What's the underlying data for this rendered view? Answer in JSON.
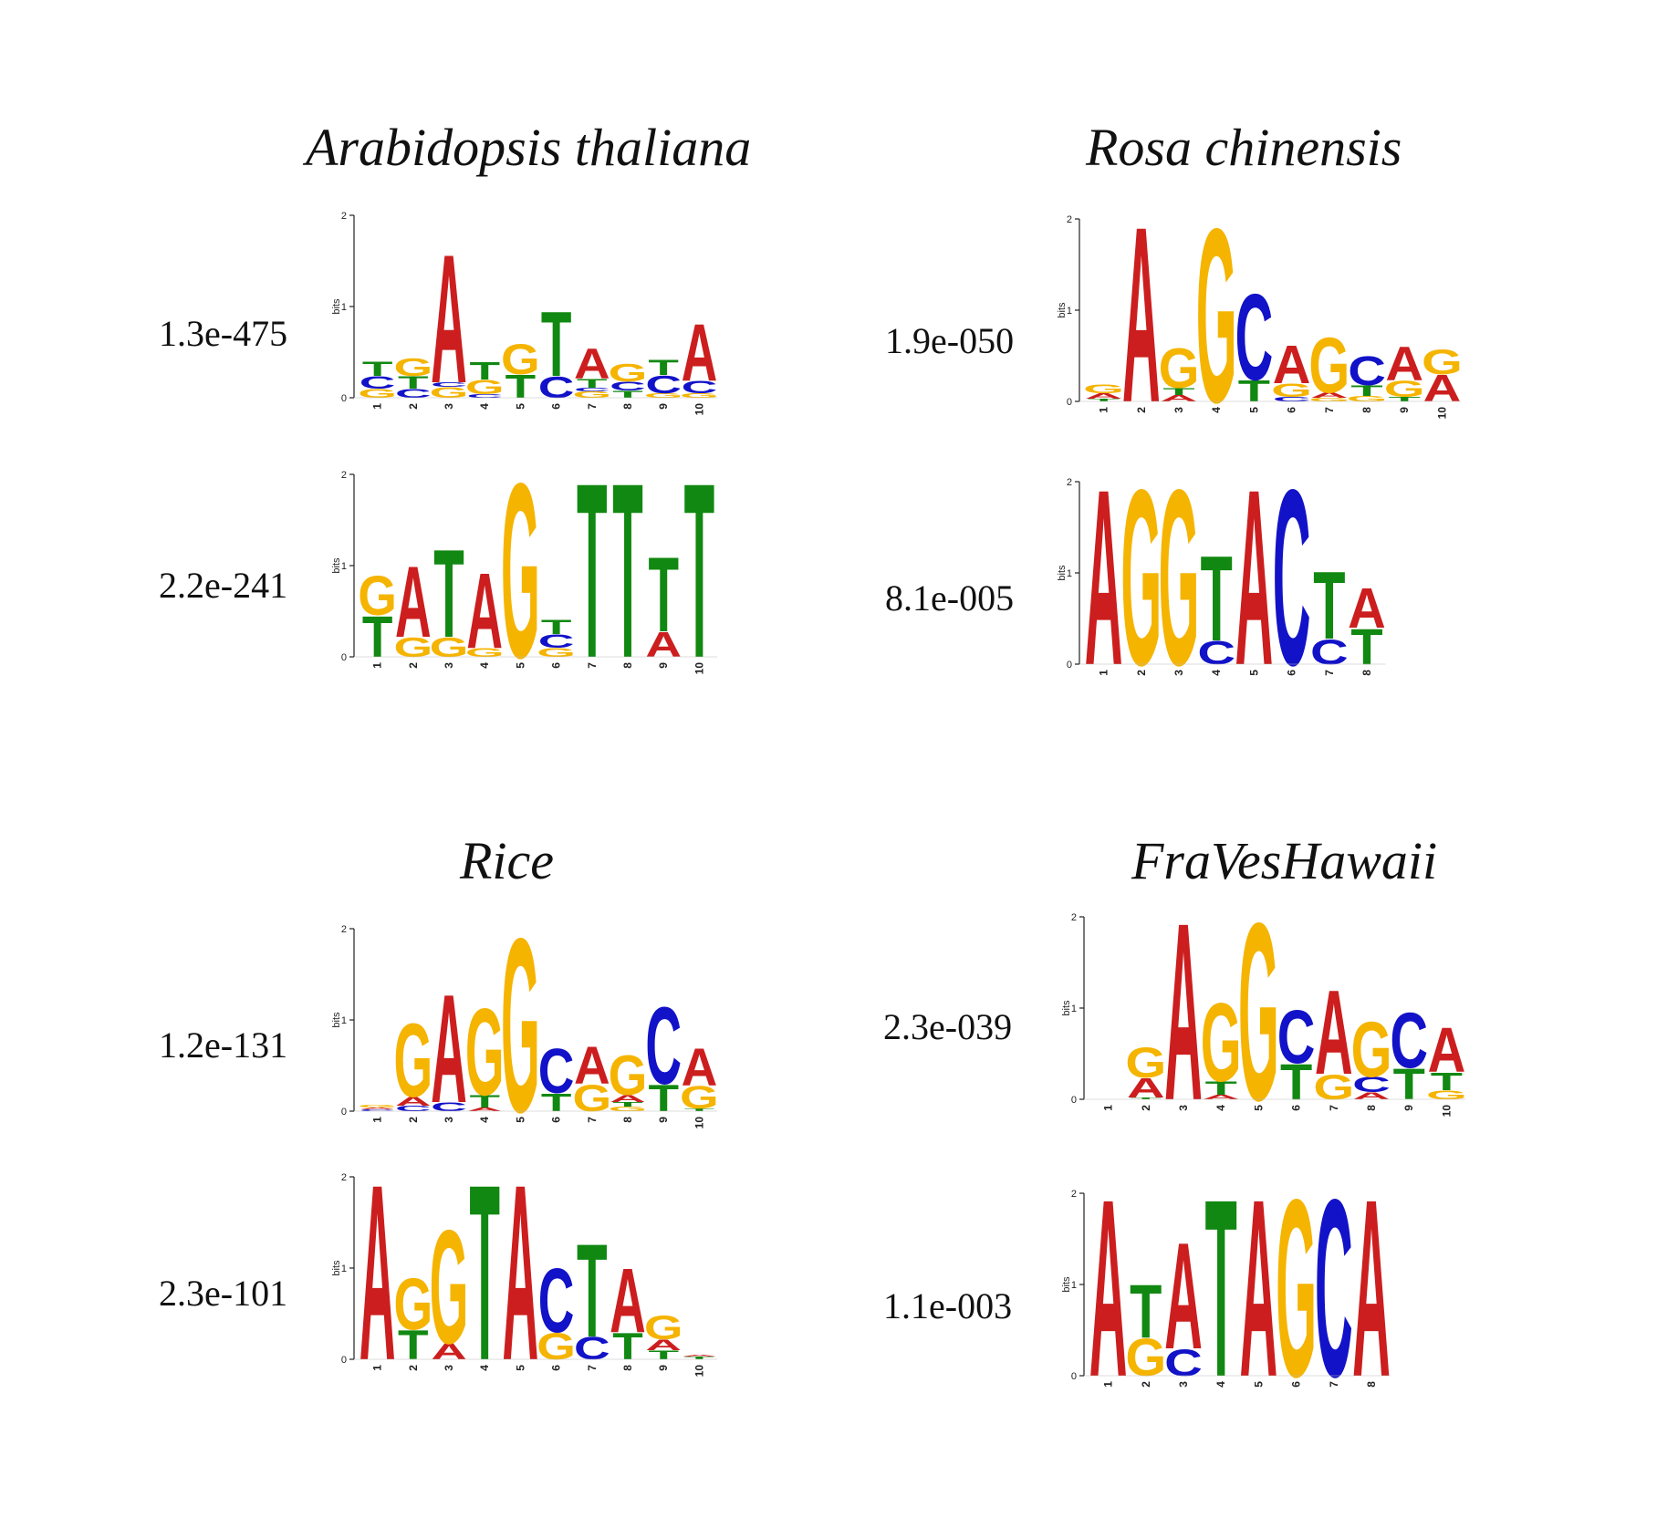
{
  "colors": {
    "A": "#cc1e1e",
    "C": "#1212c8",
    "G": "#f5b400",
    "T": "#118811"
  },
  "axis": {
    "ylabel": "bits",
    "ticks": [
      "0",
      "1",
      "2"
    ]
  },
  "panels": [
    {
      "title": "Arabidopsis thaliana",
      "motifs": [
        {
          "evalue": "1.3e-475",
          "columns": [
            {
              "G": 0.1,
              "C": 0.14,
              "T": 0.16
            },
            {
              "C": 0.1,
              "T": 0.14,
              "G": 0.2
            },
            {
              "G": 0.12,
              "C": 0.05,
              "A": 1.45
            },
            {
              "C": 0.04,
              "G": 0.16,
              "T": 0.2
            },
            {
              "T": 0.26,
              "G": 0.34
            },
            {
              "C": 0.24,
              "T": 0.73
            },
            {
              "G": 0.07,
              "C": 0.04,
              "T": 0.1,
              "A": 0.34
            },
            {
              "T": 0.08,
              "C": 0.1,
              "G": 0.2
            },
            {
              "G": 0.05,
              "C": 0.2,
              "T": 0.17
            },
            {
              "G": 0.05,
              "C": 0.14,
              "A": 0.64
            }
          ]
        },
        {
          "evalue": "2.2e-241",
          "columns": [
            {
              "T": 0.46,
              "G": 0.44
            },
            {
              "G": 0.22,
              "A": 0.8
            },
            {
              "G": 0.22,
              "T": 0.99
            },
            {
              "G": 0.1,
              "A": 0.85
            },
            {
              "G": 1.97
            },
            {
              "G": 0.1,
              "C": 0.15,
              "T": 0.16
            },
            {
              "T": 1.97
            },
            {
              "T": 1.97
            },
            {
              "A": 0.28,
              "T": 0.84
            },
            {
              "T": 1.97
            }
          ]
        }
      ]
    },
    {
      "title": "Rosa chinensis",
      "motifs": [
        {
          "evalue": "1.9e-050",
          "columns": [
            {
              "T": 0.03,
              "A": 0.06,
              "G": 0.1
            },
            {
              "A": 1.98
            },
            {
              "A": 0.07,
              "T": 0.08,
              "G": 0.45
            },
            {
              "G": 1.96
            },
            {
              "T": 0.24,
              "C": 0.97
            },
            {
              "C": 0.05,
              "G": 0.15,
              "A": 0.43
            },
            {
              "G": 0.04,
              "A": 0.06,
              "G2": 0.0,
              "G3": 0.0,
              "G4": 0.0,
              "G5": 0.0,
              "G6": 0.0,
              "Gx": 0.0,
              "GG": 0.0,
              "GGG": 0.0,
              "Gz": 0.0,
              "Gy": 0.0,
              "Gw": 0.0,
              "Gv": 0.0,
              "Gu": 0.0,
              "Gt": 0.0,
              "Gs": 0.0,
              "Gr": 0.0,
              "Gq": 0.0,
              "Gp": 0.0,
              "Go": 0.0,
              "Gn": 0.0,
              "Gm": 0.0,
              "Gl": 0.0,
              "Gk": 0.0,
              "Gj": 0.0,
              "Gi": 0.0,
              "Gh": 0.0,
              "Gg": 0.0,
              "Gf": 0.0,
              "Ge": 0.0,
              "Gd": 0.0,
              "Gc": 0.0,
              "Gb": 0.0,
              "Ga": 0.0,
              "GA": 0.62
            },
            {
              "G": 0.06,
              "T": 0.12,
              "C": 0.33
            },
            {
              "T": 0.05,
              "G": 0.18,
              "A": 0.38
            },
            {
              "A": 0.3,
              "G": 0.28
            }
          ]
        },
        {
          "evalue": "8.1e-005",
          "columns": [
            {
              "A": 1.98
            },
            {
              "G": 1.98
            },
            {
              "G": 1.98
            },
            {
              "C": 0.26,
              "T": 0.96
            },
            {
              "A": 1.98
            },
            {
              "C": 1.98
            },
            {
              "C": 0.28,
              "T": 0.76
            },
            {
              "T": 0.4,
              "A": 0.45
            }
          ]
        }
      ]
    },
    {
      "title": "Rice",
      "motifs": [
        {
          "evalue": "1.2e-131",
          "columns": [
            {
              "C": 0.02,
              "A": 0.02,
              "G": 0.03
            },
            {
              "C": 0.06,
              "A": 0.1,
              "G": 0.83
            },
            {
              "C": 0.1,
              "A": 1.22
            },
            {
              "A": 0.04,
              "T": 0.14,
              "G": 0.98
            },
            {
              "G": 1.96
            },
            {
              "T": 0.2,
              "C": 0.5
            },
            {
              "G": 0.3,
              "A": 0.42
            },
            {
              "G": 0.05,
              "T": 0.05,
              "A": 0.08,
              "G2": 0.0,
              "GA": 0.45
            },
            {
              "T": 0.3,
              "C": 0.87
            },
            {
              "T": 0.03,
              "G": 0.25,
              "A": 0.42
            }
          ]
        },
        {
          "evalue": "2.3e-101",
          "columns": [
            {
              "A": 1.98
            },
            {
              "T": 0.33,
              "G": 0.58
            },
            {
              "A": 0.18,
              "G": 1.28
            },
            {
              "T": 1.98
            },
            {
              "A": 1.98
            },
            {
              "G": 0.3,
              "C": 0.72
            },
            {
              "C": 0.25,
              "T": 1.05
            },
            {
              "T": 0.3,
              "A": 0.72
            },
            {
              "T": 0.1,
              "A": 0.12,
              "G": 0.27
            },
            {
              "T": 0.03,
              "A": 0.02
            }
          ]
        }
      ]
    },
    {
      "title": "FraVesHawaii",
      "motifs": [
        {
          "evalue": "2.3e-039",
          "columns": [
            {},
            {
              "T": 0.02,
              "A": 0.22,
              "G": 0.34
            },
            {
              "A": 2.0
            },
            {
              "A": 0.05,
              "T": 0.15,
              "G": 0.88
            },
            {
              "G": 2.0
            },
            {
              "T": 0.4,
              "C": 0.6
            },
            {
              "G": 0.28,
              "A": 0.95
            },
            {
              "A": 0.08,
              "C": 0.17,
              "G": 0.62
            },
            {
              "T": 0.35,
              "C": 0.62
            },
            {
              "G": 0.1,
              "T": 0.2,
              "A": 0.5
            }
          ]
        },
        {
          "evalue": "1.1e-003",
          "columns": [
            {
              "A": 2.0
            },
            {
              "G": 0.42,
              "T": 0.6
            },
            {
              "C": 0.3,
              "A": 1.2
            },
            {
              "T": 2.0
            },
            {
              "A": 2.0
            },
            {
              "G": 2.0
            },
            {
              "C": 2.0
            },
            {
              "A": 2.0
            }
          ]
        }
      ]
    }
  ]
}
